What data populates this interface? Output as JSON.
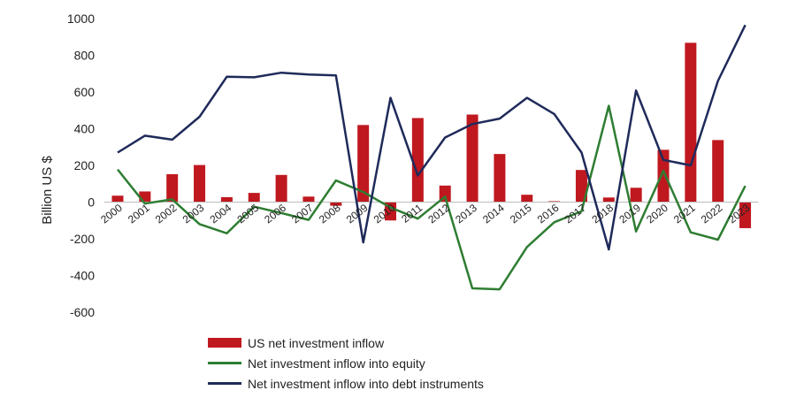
{
  "chart_data": {
    "type": "bar",
    "title": "",
    "xlabel": "",
    "ylabel": "Billion US $",
    "ylim": [
      -600,
      1000
    ],
    "yticks": [
      1000,
      800,
      600,
      400,
      200,
      0,
      -200,
      -400,
      -600
    ],
    "grid": false,
    "legend_position": "bottom",
    "categories": [
      "2000",
      "2001",
      "2002",
      "2003",
      "2004",
      "2005",
      "2006",
      "2007",
      "2008",
      "2009",
      "2010",
      "2011",
      "2012",
      "2013",
      "2014",
      "2015",
      "2016",
      "2017",
      "2018",
      "2019",
      "2020",
      "2021",
      "2022",
      "2023"
    ],
    "series": [
      {
        "name": "US net investment inflow",
        "type": "bar",
        "color": "#C0181F",
        "values": [
          35,
          58,
          152,
          202,
          27,
          50,
          148,
          30,
          -20,
          420,
          -100,
          458,
          90,
          477,
          262,
          40,
          5,
          175,
          25,
          78,
          285,
          868,
          338,
          -142
        ]
      },
      {
        "name": "Net investment inflow into equity",
        "type": "line",
        "color": "#2E7D32",
        "values": [
          178,
          -8,
          15,
          -120,
          -170,
          -25,
          -60,
          -97,
          118,
          55,
          -30,
          -90,
          30,
          -470,
          -475,
          -245,
          -110,
          -50,
          525,
          -160,
          170,
          -165,
          -205,
          88
        ]
      },
      {
        "name": "Net investment inflow into debt instruments",
        "type": "line",
        "color": "#1F2A5A",
        "values": [
          270,
          362,
          340,
          465,
          683,
          680,
          705,
          695,
          690,
          -220,
          568,
          145,
          352,
          425,
          455,
          568,
          480,
          270,
          -258,
          608,
          230,
          200,
          660,
          965
        ]
      }
    ]
  }
}
